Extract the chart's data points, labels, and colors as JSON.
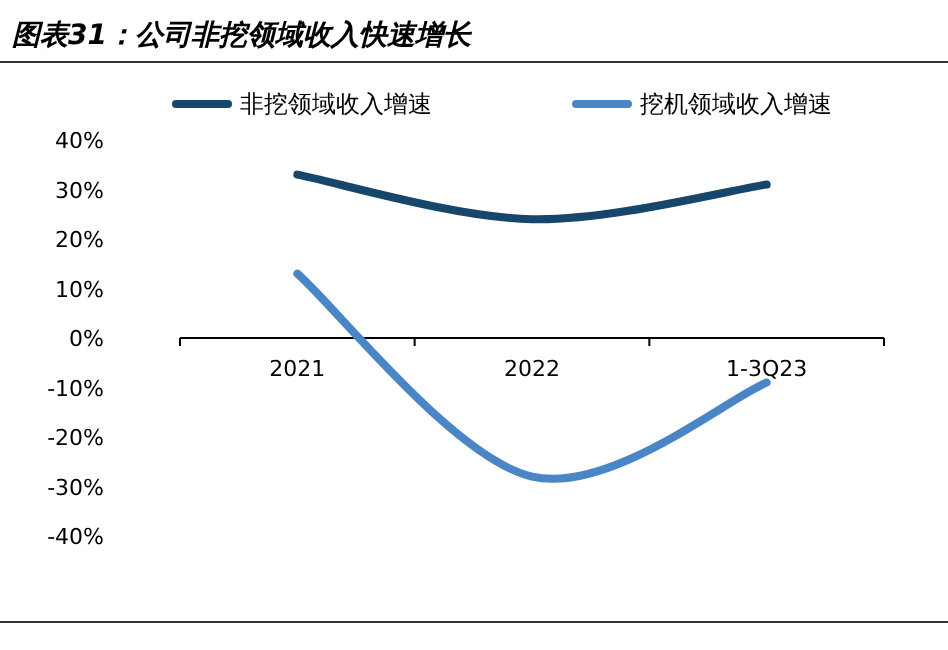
{
  "chart_data": {
    "type": "line",
    "title": "图表31：公司非挖领域收入快速增长",
    "categories": [
      "2021",
      "2022",
      "1-3Q23"
    ],
    "series": [
      {
        "name": "非挖领域收入增速",
        "color": "#17466b",
        "values": [
          33,
          24,
          31
        ]
      },
      {
        "name": "挖机领域收入增速",
        "color": "#4a86c6",
        "values": [
          13,
          -28,
          -9
        ]
      }
    ],
    "ylim": [
      -40,
      40
    ],
    "yticks": [
      {
        "value": 40,
        "label": "40%"
      },
      {
        "value": 30,
        "label": "30%"
      },
      {
        "value": 20,
        "label": "20%"
      },
      {
        "value": 10,
        "label": "10%"
      },
      {
        "value": 0,
        "label": "0%"
      },
      {
        "value": -10,
        "label": "-10%"
      },
      {
        "value": -20,
        "label": "-20%"
      },
      {
        "value": -30,
        "label": "-30%"
      },
      {
        "value": -40,
        "label": "-40%"
      }
    ],
    "grid": false,
    "legend": "top",
    "marker": "none",
    "line_style": "solid"
  }
}
